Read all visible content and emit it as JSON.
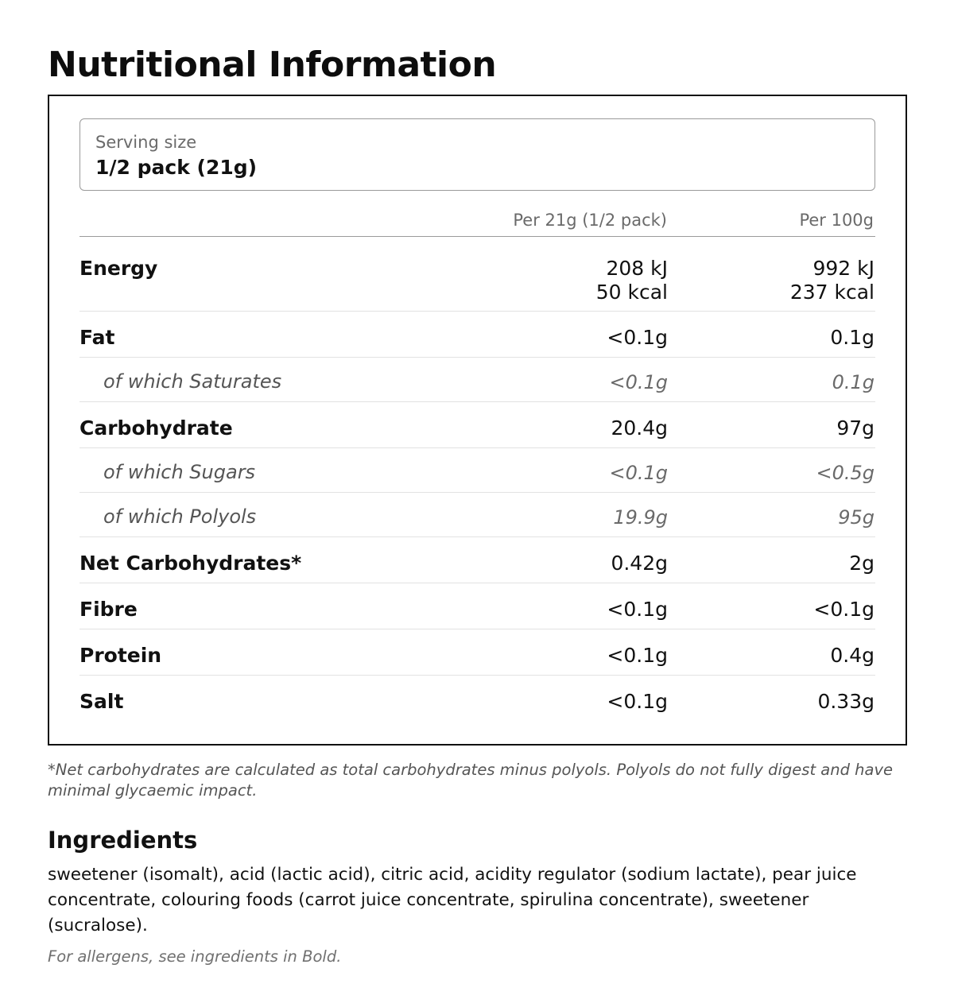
{
  "title": "Nutritional Information",
  "serving": {
    "label": "Serving size",
    "value": "1/2 pack (21g)"
  },
  "columns": {
    "per_serving": "Per 21g (1/2 pack)",
    "per_100g": "Per 100g"
  },
  "rows": [
    {
      "label": "Energy",
      "per_serving": "208 kJ",
      "per_serving_2": "50 kcal",
      "per_100g": "992 kJ",
      "per_100g_2": "237 kcal",
      "sub": false
    },
    {
      "label": "Fat",
      "per_serving": "<0.1g",
      "per_100g": "0.1g",
      "sub": false
    },
    {
      "label": "of which Saturates",
      "per_serving": "<0.1g",
      "per_100g": "0.1g",
      "sub": true
    },
    {
      "label": "Carbohydrate",
      "per_serving": "20.4g",
      "per_100g": "97g",
      "sub": false
    },
    {
      "label": "of which Sugars",
      "per_serving": "<0.1g",
      "per_100g": "<0.5g",
      "sub": true
    },
    {
      "label": "of which Polyols",
      "per_serving": "19.9g",
      "per_100g": "95g",
      "sub": true
    },
    {
      "label": "Net Carbohydrates*",
      "per_serving": "0.42g",
      "per_100g": "2g",
      "sub": false
    },
    {
      "label": "Fibre",
      "per_serving": "<0.1g",
      "per_100g": "<0.1g",
      "sub": false
    },
    {
      "label": "Protein",
      "per_serving": "<0.1g",
      "per_100g": "0.4g",
      "sub": false
    },
    {
      "label": "Salt",
      "per_serving": "<0.1g",
      "per_100g": "0.33g",
      "sub": false
    }
  ],
  "footnote": "*Net carbohydrates are calculated as total carbohydrates minus polyols. Polyols do not fully digest and have minimal glycaemic impact.",
  "ingredients": {
    "title": "Ingredients",
    "text": "sweetener (isomalt), acid (lactic acid), citric acid, acidity regulator (sodium lactate), pear juice concentrate, colouring foods (carrot juice concentrate, spirulina concentrate), sweetener (sucralose).",
    "allergen_note": "For allergens, see ingredients in Bold."
  }
}
